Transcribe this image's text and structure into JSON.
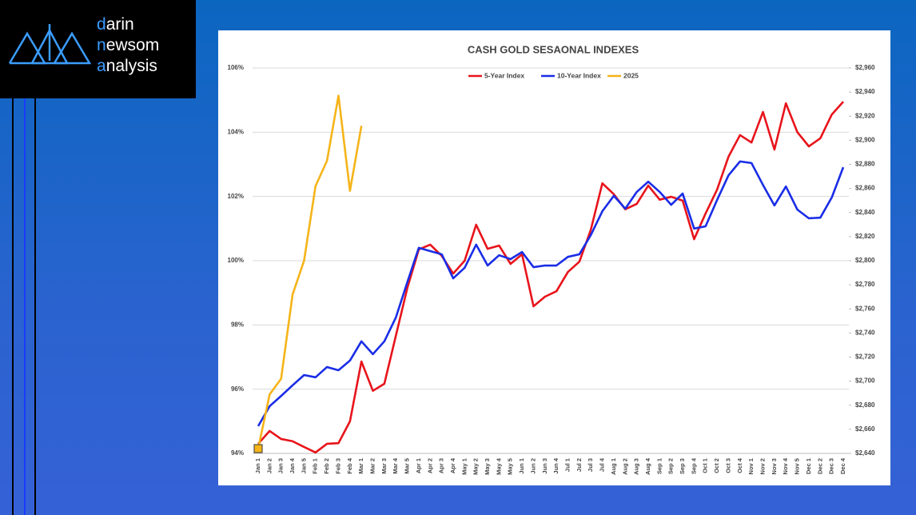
{
  "logo": {
    "lines": [
      "darin",
      "newsom",
      "analysis"
    ]
  },
  "chart_data": {
    "type": "line",
    "title": "CASH GOLD SESAONAL INDEXES",
    "categories": [
      "Jan 1",
      "Jan 2",
      "Jan 3",
      "Jan 4",
      "Jan 5",
      "Feb 1",
      "Feb 2",
      "Feb 3",
      "Feb 4",
      "Mar 1",
      "Mar 2",
      "Mar 3",
      "Mar 4",
      "Mar 5",
      "Apr 1",
      "Apr 2",
      "Apr 3",
      "Apr 4",
      "May 1",
      "May 2",
      "May 3",
      "May 4",
      "May 5",
      "Jun 1",
      "Jun 2",
      "Jun 3",
      "Jun 4",
      "Jul 1",
      "Jul 2",
      "Jul 3",
      "Jul 4",
      "Aug 1",
      "Aug 2",
      "Aug 3",
      "Aug 4",
      "Sep 1",
      "Sep 2",
      "Sep 3",
      "Sep 4",
      "Oct 1",
      "Oct 2",
      "Oct 3",
      "Oct 4",
      "Nov 1",
      "Nov 2",
      "Nov 3",
      "Nov 4",
      "Nov 5",
      "Dec 1",
      "Dec 2",
      "Dec 3",
      "Dec 4"
    ],
    "series": [
      {
        "name": "5-Year Index",
        "color": "#e8141b",
        "values": [
          94.3,
          94.7,
          94.45,
          94.38,
          94.2,
          94.03,
          94.3,
          94.32,
          95.0,
          96.86,
          95.95,
          96.17,
          97.66,
          99.15,
          100.35,
          100.5,
          100.15,
          99.6,
          100.0,
          101.12,
          100.37,
          100.47,
          99.9,
          100.2,
          98.58,
          98.88,
          99.05,
          99.65,
          99.97,
          100.97,
          102.41,
          102.07,
          101.6,
          101.77,
          102.34,
          101.9,
          101.99,
          101.87,
          100.67,
          101.47,
          102.21,
          103.24,
          103.91,
          103.68,
          104.63,
          103.46,
          104.9,
          104.0,
          103.56,
          103.81,
          104.55,
          104.95
        ]
      },
      {
        "name": "10-Year Index",
        "color": "#1a2de6",
        "values": [
          94.85,
          95.47,
          95.79,
          96.12,
          96.44,
          96.37,
          96.69,
          96.59,
          96.89,
          97.49,
          97.09,
          97.49,
          98.23,
          99.33,
          100.4,
          100.3,
          100.2,
          99.45,
          99.78,
          100.5,
          99.85,
          100.17,
          100.05,
          100.27,
          99.8,
          99.85,
          99.85,
          100.12,
          100.2,
          100.8,
          101.54,
          102.02,
          101.62,
          102.14,
          102.46,
          102.14,
          101.74,
          102.09,
          101.0,
          101.07,
          101.89,
          102.66,
          103.09,
          103.04,
          102.36,
          101.72,
          102.31,
          101.59,
          101.32,
          101.34,
          101.97,
          102.91
        ]
      },
      {
        "name": "2025",
        "color": "#f5b419",
        "axis": "y2",
        "values": [
          2644,
          2689,
          2702,
          2772,
          2800,
          2862,
          2883,
          2937,
          2858,
          2912,
          null,
          null,
          null,
          null,
          null,
          null,
          null,
          null,
          null,
          null,
          null,
          null,
          null,
          null,
          null,
          null,
          null,
          null,
          null,
          null,
          null,
          null,
          null,
          null,
          null,
          null,
          null,
          null,
          null,
          null,
          null,
          null,
          null,
          null,
          null,
          null,
          null,
          null,
          null,
          null,
          null,
          null
        ]
      }
    ],
    "ylim": [
      94,
      106
    ],
    "yticks": [
      {
        "value": 94,
        "label": "94%"
      },
      {
        "value": 96,
        "label": "96%"
      },
      {
        "value": 98,
        "label": "98%"
      },
      {
        "value": 100,
        "label": "100%"
      },
      {
        "value": 102,
        "label": "102%"
      },
      {
        "value": 104,
        "label": "104%"
      },
      {
        "value": 106,
        "label": "106%"
      }
    ],
    "y2lim": [
      2640,
      2960
    ],
    "y2ticks": [
      {
        "value": 2640,
        "label": "$2,640"
      },
      {
        "value": 2660,
        "label": "$2,660"
      },
      {
        "value": 2680,
        "label": "$2,680"
      },
      {
        "value": 2700,
        "label": "$2,700"
      },
      {
        "value": 2720,
        "label": "$2,720"
      },
      {
        "value": 2740,
        "label": "$2,740"
      },
      {
        "value": 2760,
        "label": "$2,760"
      },
      {
        "value": 2780,
        "label": "$2,780"
      },
      {
        "value": 2800,
        "label": "$2,800"
      },
      {
        "value": 2820,
        "label": "$2,820"
      },
      {
        "value": 2840,
        "label": "$2,840"
      },
      {
        "value": 2860,
        "label": "$2,860"
      },
      {
        "value": 2880,
        "label": "$2,880"
      },
      {
        "value": 2900,
        "label": "$2,900"
      },
      {
        "value": 2920,
        "label": "$2,920"
      },
      {
        "value": 2940,
        "label": "$2,940"
      },
      {
        "value": 2960,
        "label": "$2,960"
      }
    ],
    "grid": true,
    "legend": "top"
  }
}
